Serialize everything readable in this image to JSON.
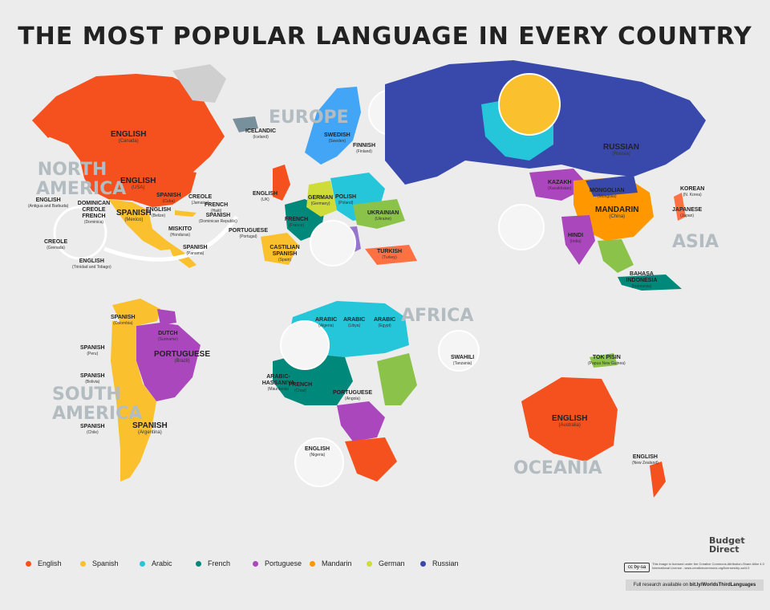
{
  "title": "THE MOST POPULAR LANGUAGE IN EVERY COUNTRY",
  "regions": {
    "north_america": "NORTH AMERICA",
    "europe": "EUROPE",
    "asia": "ASIA",
    "africa": "AFRICA",
    "south_america": "SOUTH AMERICA",
    "oceania": "OCEANIA"
  },
  "colors": {
    "English": "#f4511e",
    "Spanish": "#fbc02d",
    "Arabic": "#26c6da",
    "French": "#00897b",
    "Portuguese": "#ab47bc",
    "Mandarin": "#ff9800",
    "German": "#cddc39",
    "Russian": "#3949ab",
    "ocean": "#ececec",
    "other": "#8bc34a"
  },
  "countries": [
    {
      "lang": "ENGLISH",
      "country": "(Canada)"
    },
    {
      "lang": "ENGLISH",
      "country": "(USA)"
    },
    {
      "lang": "SPANISH",
      "country": "(Mexico)"
    },
    {
      "lang": "ENGLISH",
      "country": "(Belize)"
    },
    {
      "lang": "SPANISH",
      "country": "(Cuba)"
    },
    {
      "lang": "CREOLE",
      "country": "(Jamaica)"
    },
    {
      "lang": "FRENCH",
      "country": "(Haiti)"
    },
    {
      "lang": "SPANISH",
      "country": "(Dominican Republic)"
    },
    {
      "lang": "MISKITO",
      "country": "(Honduras)"
    },
    {
      "lang": "ENGLISH",
      "country": "(Antigua and Barbuda)"
    },
    {
      "lang": "DOMINICAN CREOLE FRENCH",
      "country": "(Dominica)"
    },
    {
      "lang": "CREOLE",
      "country": "(Grenada)"
    },
    {
      "lang": "ENGLISH",
      "country": "(Trinidad and Tobago)"
    },
    {
      "lang": "SPANISH",
      "country": "(Panama)"
    },
    {
      "lang": "ICELANDIC",
      "country": "(Iceland)"
    },
    {
      "lang": "SWEDISH",
      "country": "(Sweden)"
    },
    {
      "lang": "FINNISH",
      "country": "(Finland)"
    },
    {
      "lang": "ENGLISH",
      "country": "(UK)"
    },
    {
      "lang": "GERMAN",
      "country": "(Germany)"
    },
    {
      "lang": "POLISH",
      "country": "(Poland)"
    },
    {
      "lang": "FRENCH",
      "country": "(France)"
    },
    {
      "lang": "UKRAINIAN",
      "country": "(Ukraine)"
    },
    {
      "lang": "CASTILIAN SPANISH",
      "country": "(Spain)"
    },
    {
      "lang": "PORTUGUESE",
      "country": "(Portugal)"
    },
    {
      "lang": "TURKISH",
      "country": "(Turkey)"
    },
    {
      "lang": "RUSSIAN",
      "country": "(Russia)"
    },
    {
      "lang": "MANDARIN",
      "country": "(China)"
    },
    {
      "lang": "MONGOLIAN",
      "country": "(Mongolia)"
    },
    {
      "lang": "KAZAKH",
      "country": "(Kazakhstan)"
    },
    {
      "lang": "HINDI",
      "country": "(India)"
    },
    {
      "lang": "KOREAN",
      "country": "(N. Korea)"
    },
    {
      "lang": "JAPANESE",
      "country": "(Japan)"
    },
    {
      "lang": "BAHASA INDONESIA",
      "country": "(Indonesia)"
    },
    {
      "lang": "SPANISH",
      "country": "(Colombia)"
    },
    {
      "lang": "PORTUGUESE",
      "country": "(Brazil)"
    },
    {
      "lang": "SPANISH",
      "country": "(Argentina)"
    },
    {
      "lang": "SPANISH",
      "country": "(Peru)"
    },
    {
      "lang": "SPANISH",
      "country": "(Bolivia)"
    },
    {
      "lang": "SPANISH",
      "country": "(Chile)"
    },
    {
      "lang": "DUTCH",
      "country": "(Suriname)"
    },
    {
      "lang": "ARABIC",
      "country": "(Algeria)"
    },
    {
      "lang": "ARABIC",
      "country": "(Libya)"
    },
    {
      "lang": "ARABIC",
      "country": "(Egypt)"
    },
    {
      "lang": "ARABIC-HASSANIYA",
      "country": "(Mauritania)"
    },
    {
      "lang": "FRENCH",
      "country": "(Chad)"
    },
    {
      "lang": "PORTUGUESE",
      "country": "(Angola)"
    },
    {
      "lang": "SWAHILI",
      "country": "(Tanzania)"
    },
    {
      "lang": "ENGLISH",
      "country": "(Nigeria)"
    },
    {
      "lang": "ENGLISH",
      "country": "(Australia)"
    },
    {
      "lang": "ENGLISH",
      "country": "(New Zealand)"
    },
    {
      "lang": "TOK PISIN",
      "country": "(Papua New Guinea)"
    }
  ],
  "legend": [
    {
      "label": "English"
    },
    {
      "label": "Spanish"
    },
    {
      "label": "Arabic"
    },
    {
      "label": "French"
    },
    {
      "label": "Portuguese"
    },
    {
      "label": "Mandarin"
    },
    {
      "label": "German"
    },
    {
      "label": "Russian"
    }
  ],
  "branding": {
    "logo_line1": "Budget",
    "logo_line2": "Direct",
    "cc_badge": "cc by-sa",
    "license": "This image is licensed under the Creative Commons Attribution-Share Alike 4.0 International License - www.creativecommons.org/licenses/by-sa/4.0",
    "research_prefix": "Full research available on ",
    "research_link": "bit.ly/WorldsThirdLanguages"
  }
}
